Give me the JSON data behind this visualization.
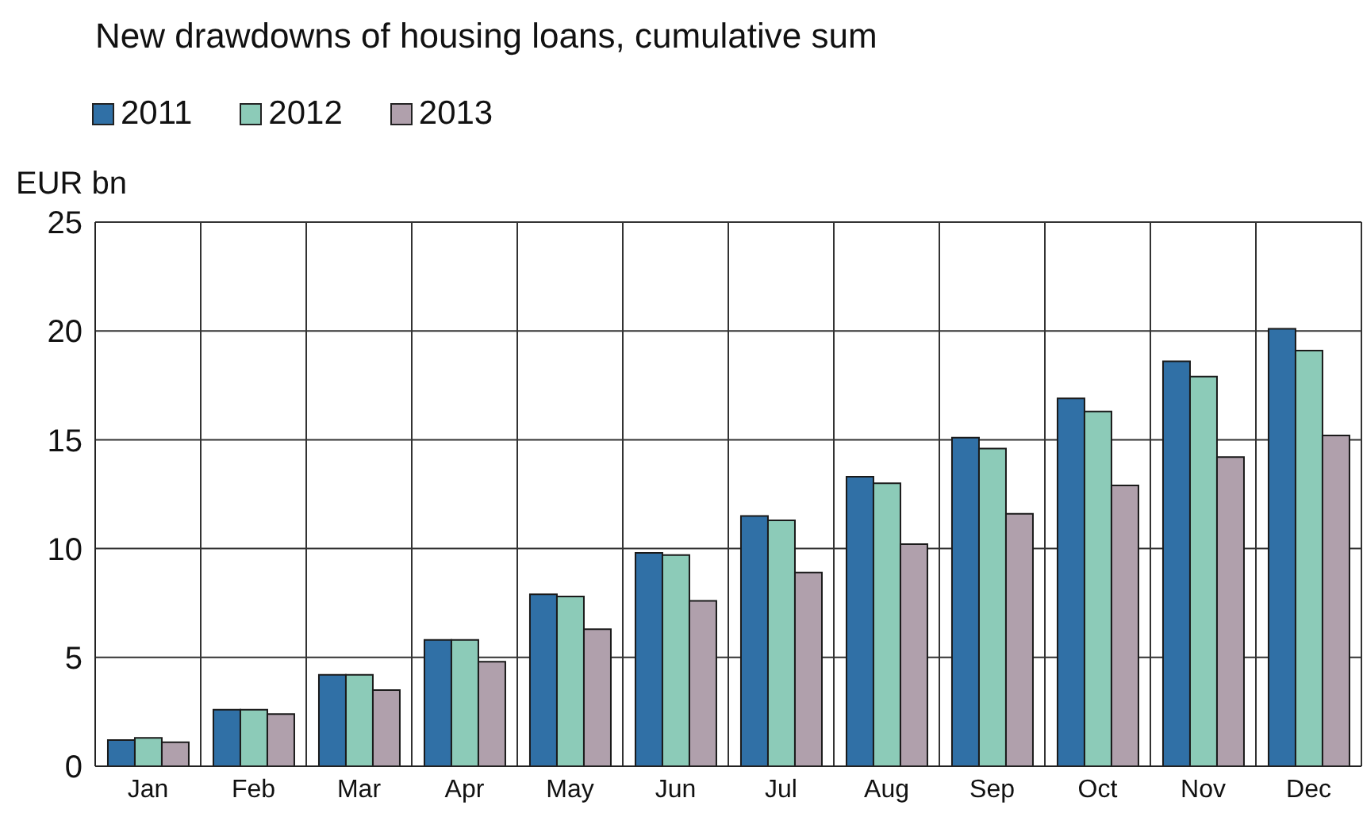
{
  "chart_data": {
    "type": "bar",
    "title": "New drawdowns of housing loans, cumulative sum",
    "ylabel": "EUR bn",
    "categories": [
      "Jan",
      "Feb",
      "Mar",
      "Apr",
      "May",
      "Jun",
      "Jul",
      "Aug",
      "Sep",
      "Oct",
      "Nov",
      "Dec"
    ],
    "series": [
      {
        "name": "2011",
        "color": "#3070a6",
        "values": [
          1.2,
          2.6,
          4.2,
          5.8,
          7.9,
          9.8,
          11.5,
          13.3,
          15.1,
          16.9,
          18.6,
          20.1
        ]
      },
      {
        "name": "2012",
        "color": "#8ccbb8",
        "values": [
          1.3,
          2.6,
          4.2,
          5.8,
          7.8,
          9.7,
          11.3,
          13.0,
          14.6,
          16.3,
          17.9,
          19.1
        ]
      },
      {
        "name": "2013",
        "color": "#b0a0ac",
        "values": [
          1.1,
          2.4,
          3.5,
          4.8,
          6.3,
          7.6,
          8.9,
          10.2,
          11.6,
          12.9,
          14.2,
          15.2
        ]
      }
    ],
    "ylim": [
      0,
      25
    ],
    "yticks": [
      0,
      5,
      10,
      15,
      20,
      25
    ],
    "grid": true,
    "legend": "top left"
  }
}
